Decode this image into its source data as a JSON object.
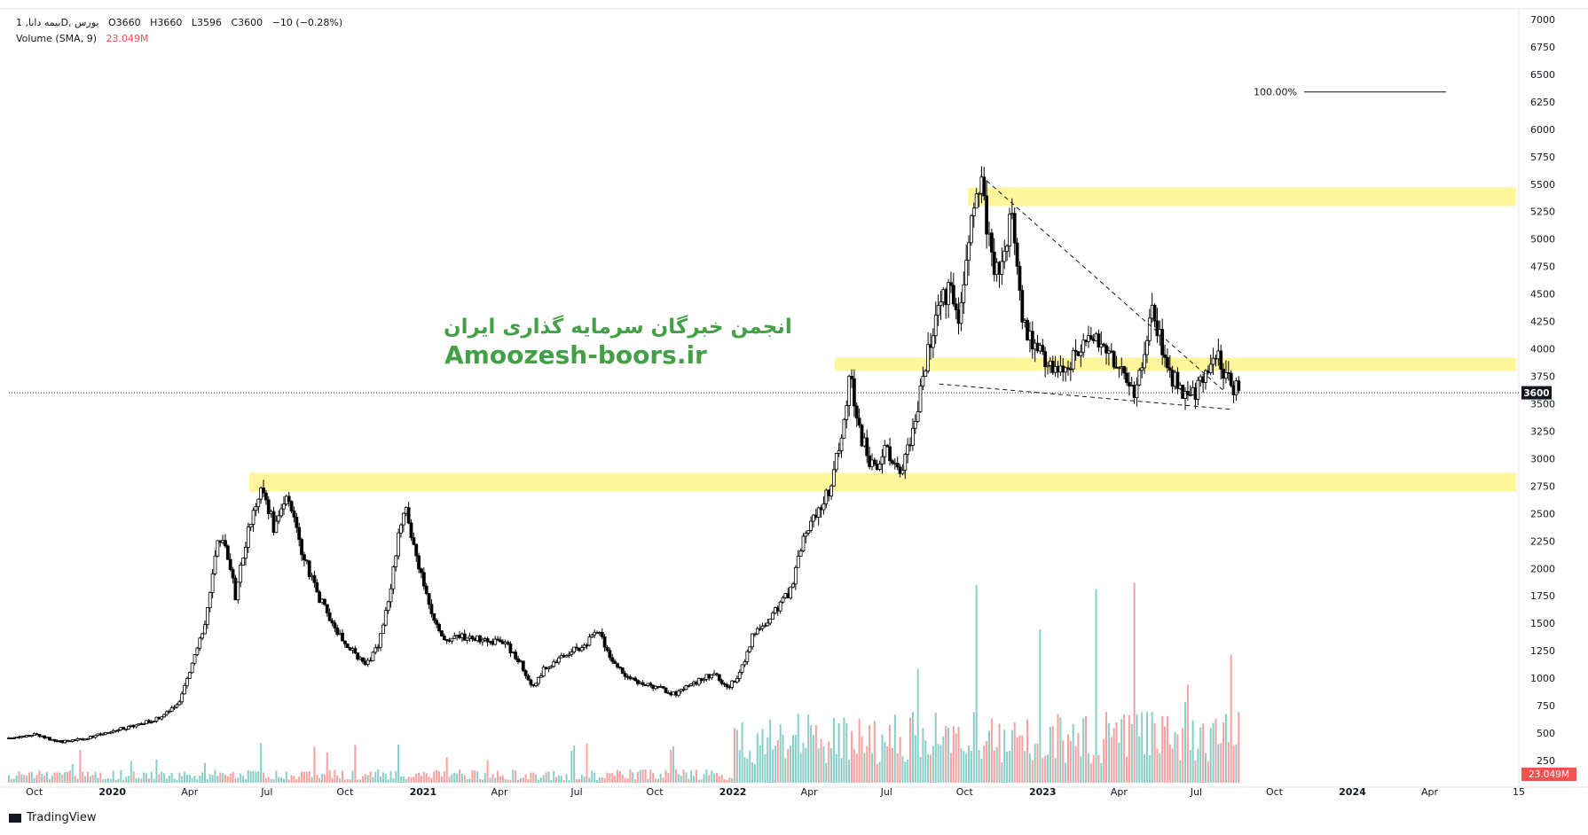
{
  "legend": {
    "symbol": "بیمه دانا, 1D, بورس",
    "open": "O3660",
    "high": "H3660",
    "low": "L3596",
    "close": "C3600",
    "change": "−10 (−0.28%)",
    "volume_label": "Volume (SMA, 9)",
    "volume_value": "23.049M"
  },
  "watermark": {
    "persian": "انجمن خبرگان سرمایه گذاری ایران",
    "site": "Amoozesh-boors.ir"
  },
  "branding": {
    "name": "TradingView"
  },
  "price_scale": {
    "ticks": [
      "7000",
      "6750",
      "6500",
      "6250",
      "6000",
      "5750",
      "5500",
      "5250",
      "5000",
      "4750",
      "4500",
      "4250",
      "4000",
      "3750",
      "3500",
      "3250",
      "3000",
      "2750",
      "2500",
      "2250",
      "2000",
      "1750",
      "1500",
      "1250",
      "1000",
      "750",
      "500",
      "250"
    ],
    "last_price_label": "3600",
    "volume_label": "23.049M"
  },
  "time_scale": {
    "ticks": [
      "Oct",
      "2020",
      "Apr",
      "Jul",
      "Oct",
      "2021",
      "Apr",
      "Jul",
      "Oct",
      "2022",
      "Apr",
      "Jul",
      "Oct",
      "2023",
      "Apr",
      "Jul",
      "Oct",
      "2024",
      "Apr",
      "15"
    ]
  },
  "annotations": {
    "fib_label": "100.00%"
  },
  "colors": {
    "up": "#26a69a",
    "down": "#ef5350",
    "candle": "#000000",
    "zone": "#fff59d",
    "watermark": "#43a047"
  },
  "chart_data": {
    "type": "candlestick",
    "y_range": [
      0,
      7000
    ],
    "x_range": [
      "2019-09-01",
      "2024-07-15"
    ],
    "price_path": [
      [
        "2019-09-01",
        450
      ],
      [
        "2019-10-01",
        490
      ],
      [
        "2019-11-01",
        420
      ],
      [
        "2019-12-01",
        450
      ],
      [
        "2020-01-01",
        520
      ],
      [
        "2020-02-01",
        580
      ],
      [
        "2020-03-01",
        650
      ],
      [
        "2020-03-20",
        800
      ],
      [
        "2020-04-01",
        1050
      ],
      [
        "2020-04-20",
        1500
      ],
      [
        "2020-05-05",
        2300
      ],
      [
        "2020-05-15",
        2150
      ],
      [
        "2020-05-25",
        1750
      ],
      [
        "2020-06-10",
        2400
      ],
      [
        "2020-06-25",
        2800
      ],
      [
        "2020-07-10",
        2350
      ],
      [
        "2020-07-25",
        2700
      ],
      [
        "2020-08-10",
        2200
      ],
      [
        "2020-08-25",
        1850
      ],
      [
        "2020-09-15",
        1500
      ],
      [
        "2020-10-10",
        1250
      ],
      [
        "2020-10-25",
        1100
      ],
      [
        "2020-11-10",
        1300
      ],
      [
        "2020-11-25",
        1900
      ],
      [
        "2020-12-10",
        2600
      ],
      [
        "2020-12-25",
        2100
      ],
      [
        "2021-01-10",
        1600
      ],
      [
        "2021-01-25",
        1350
      ],
      [
        "2021-02-15",
        1380
      ],
      [
        "2021-03-15",
        1350
      ],
      [
        "2021-04-10",
        1300
      ],
      [
        "2021-04-25",
        1150
      ],
      [
        "2021-05-10",
        900
      ],
      [
        "2021-05-25",
        1100
      ],
      [
        "2021-06-15",
        1200
      ],
      [
        "2021-07-10",
        1300
      ],
      [
        "2021-07-25",
        1450
      ],
      [
        "2021-08-10",
        1200
      ],
      [
        "2021-08-25",
        1050
      ],
      [
        "2021-09-15",
        950
      ],
      [
        "2021-10-10",
        900
      ],
      [
        "2021-10-25",
        850
      ],
      [
        "2021-11-15",
        950
      ],
      [
        "2021-12-10",
        1050
      ],
      [
        "2021-12-25",
        900
      ],
      [
        "2022-01-10",
        1050
      ],
      [
        "2022-01-25",
        1400
      ],
      [
        "2022-02-15",
        1550
      ],
      [
        "2022-03-10",
        1800
      ],
      [
        "2022-03-25",
        2300
      ],
      [
        "2022-04-10",
        2500
      ],
      [
        "2022-04-25",
        2700
      ],
      [
        "2022-05-10",
        3300
      ],
      [
        "2022-05-20",
        3750
      ],
      [
        "2022-06-01",
        3200
      ],
      [
        "2022-06-15",
        2900
      ],
      [
        "2022-07-01",
        3100
      ],
      [
        "2022-07-15",
        2850
      ],
      [
        "2022-07-30",
        3150
      ],
      [
        "2022-08-15",
        3800
      ],
      [
        "2022-09-01",
        4400
      ],
      [
        "2022-09-15",
        4600
      ],
      [
        "2022-09-25",
        4200
      ],
      [
        "2022-10-10",
        5350
      ],
      [
        "2022-10-20",
        5600
      ],
      [
        "2022-11-01",
        4800
      ],
      [
        "2022-11-15",
        4700
      ],
      [
        "2022-11-25",
        5200
      ],
      [
        "2022-12-10",
        4200
      ],
      [
        "2023-01-01",
        3900
      ],
      [
        "2023-02-01",
        3850
      ],
      [
        "2023-03-01",
        4100
      ],
      [
        "2023-04-01",
        3850
      ],
      [
        "2023-04-20",
        3600
      ],
      [
        "2023-05-10",
        4350
      ],
      [
        "2023-06-01",
        3750
      ],
      [
        "2023-06-20",
        3550
      ],
      [
        "2023-07-10",
        3700
      ],
      [
        "2023-07-25",
        3950
      ],
      [
        "2023-08-10",
        3700
      ],
      [
        "2023-08-20",
        3600
      ]
    ],
    "zones": [
      {
        "low": 5300,
        "high": 5470,
        "from": "2022-10-05",
        "to": "2024-07-15"
      },
      {
        "low": 3800,
        "high": 3920,
        "from": "2022-05-01",
        "to": "2024-07-15"
      },
      {
        "low": 2700,
        "high": 2870,
        "from": "2020-06-10",
        "to": "2024-07-15"
      }
    ],
    "trendlines": [
      {
        "from": [
          "2022-10-20",
          5580
        ],
        "to": [
          "2023-08-05",
          3600
        ],
        "style": "dashed"
      },
      {
        "from": [
          "2022-09-01",
          3680
        ],
        "to": [
          "2023-08-10",
          3450
        ],
        "style": "dashed"
      }
    ],
    "fib_level": {
      "label": "100.00%",
      "price": 6340
    },
    "last_price": 3600,
    "volume_sma_9": "23.049M"
  }
}
